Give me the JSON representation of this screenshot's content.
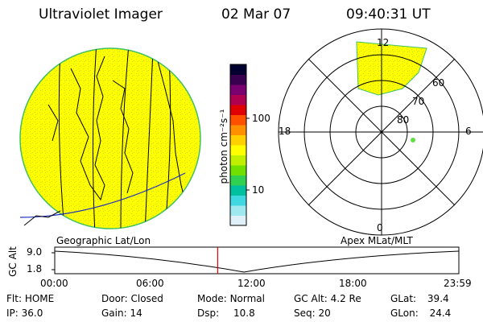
{
  "header": {
    "title": "Ultraviolet Imager",
    "date": "02 Mar 07",
    "time": "09:40:31 UT"
  },
  "colorbar": {
    "label": "photon cm⁻²s⁻¹",
    "ticks": [
      "100",
      "10"
    ],
    "colors": [
      "#000030",
      "#3a0050",
      "#7a0070",
      "#b00050",
      "#e00000",
      "#ff5000",
      "#ff9000",
      "#ffd000",
      "#ffff00",
      "#c0f000",
      "#70e000",
      "#30d050",
      "#00c0a0",
      "#40d8e0",
      "#a0e8f0",
      "#e0f0f8"
    ]
  },
  "polar": {
    "labels": {
      "top": "12",
      "left": "18",
      "right": "6",
      "bottom": "0"
    },
    "rings": [
      "60",
      "70",
      "80"
    ]
  },
  "altplot": {
    "left_title": "Geographic Lat/Lon",
    "right_title": "Apex MLat/MLT",
    "ylabel": "GC Alt",
    "yticks": [
      "9.0",
      "1.8"
    ],
    "xticks": [
      "00:00",
      "06:00",
      "12:00",
      "18:00",
      "23:59"
    ],
    "current_time_fraction": 0.4031
  },
  "status": {
    "row1": [
      {
        "label": "Flt:",
        "value": "HOME"
      },
      {
        "label": "Door:",
        "value": "Closed"
      },
      {
        "label": "Mode:",
        "value": "Normal"
      },
      {
        "label": "GC Alt:",
        "value": "4.2 Re"
      },
      {
        "label": "GLat:",
        "value": "39.4"
      }
    ],
    "row2": [
      {
        "label": "IP:",
        "value": "36.0"
      },
      {
        "label": "Gain:",
        "value": "14"
      },
      {
        "label": "Dsp:",
        "value": "10.8"
      },
      {
        "label": "Seq:",
        "value": "20"
      },
      {
        "label": "GLon:",
        "value": "24.4"
      }
    ]
  }
}
